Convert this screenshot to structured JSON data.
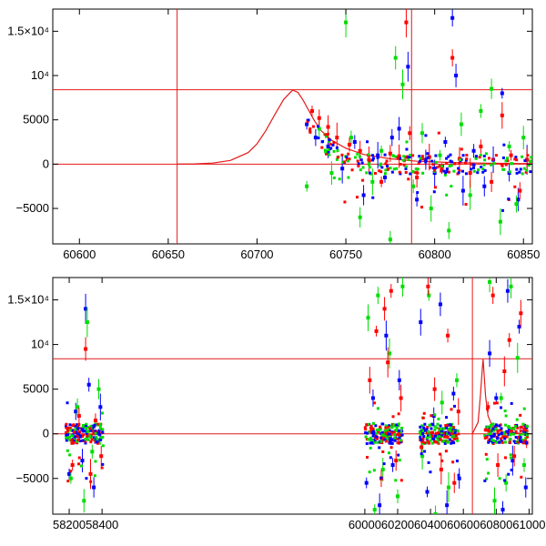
{
  "chart_data": [
    {
      "type": "scatter",
      "title": "",
      "xlabel": "",
      "ylabel": "",
      "xlim": [
        60585,
        60855
      ],
      "ylim": [
        -9000,
        17500
      ],
      "grid": false,
      "legend": "none",
      "x_ticks": [
        {
          "value": 60600,
          "label": "60600"
        },
        {
          "value": 60650,
          "label": "60650"
        },
        {
          "value": 60700,
          "label": "60700"
        },
        {
          "value": 60750,
          "label": "60750"
        },
        {
          "value": 60800,
          "label": "60800"
        },
        {
          "value": 60850,
          "label": "60850"
        }
      ],
      "y_ticks": [
        {
          "value": -5000,
          "label": "−5000"
        },
        {
          "value": 0,
          "label": "0"
        },
        {
          "value": 5000,
          "label": "5000"
        },
        {
          "value": 10000,
          "label": "10⁴"
        },
        {
          "value": 15000,
          "label": "1.5×10⁴"
        }
      ],
      "reference_lines": {
        "horizontal": [
          0,
          8400
        ],
        "vertical": [
          60655,
          60787
        ]
      },
      "model_curve": {
        "color": "#e41a1c",
        "x": [
          60655,
          60665,
          60675,
          60685,
          60695,
          60700,
          60705,
          60710,
          60715,
          60720,
          60723,
          60726,
          60729,
          60732,
          60736,
          60742,
          60750,
          60760,
          60775,
          60790,
          60810,
          60830,
          60855
        ],
        "y": [
          0,
          30,
          120,
          420,
          1300,
          2300,
          3800,
          5600,
          7300,
          8350,
          8100,
          7200,
          6100,
          5000,
          3800,
          2700,
          1800,
          1100,
          600,
          330,
          180,
          100,
          60
        ]
      },
      "series": [
        {
          "color": "#0000ff",
          "x": [
            60728,
            60733,
            60740,
            60748,
            60755,
            60760,
            60768,
            60772,
            60776,
            60780,
            60785,
            60790,
            60795,
            60800,
            60806,
            60810,
            60812,
            60816,
            60822,
            60828,
            60833,
            60838,
            60842,
            60847,
            60852
          ],
          "y": [
            4500,
            3000,
            2000,
            -500,
            2500,
            -3500,
            1000,
            -1500,
            3000,
            4000,
            11000,
            -4000,
            500,
            -1000,
            2500,
            16500,
            10000,
            -3000,
            1500,
            -2500,
            500,
            8000,
            -1000,
            -4000,
            500
          ]
        },
        {
          "color": "#00dd00",
          "x": [
            60728,
            60735,
            60742,
            60750,
            60753,
            60758,
            60765,
            60770,
            60775,
            60778,
            60782,
            60788,
            60793,
            60798,
            60803,
            60808,
            60815,
            60820,
            60826,
            60832,
            60837,
            60842,
            60846,
            60850
          ],
          "y": [
            -2500,
            4000,
            -1000,
            16000,
            3000,
            -6000,
            -2000,
            1500,
            -8500,
            12000,
            9000,
            -2500,
            3500,
            -5000,
            1000,
            -7500,
            4500,
            -3500,
            6000,
            8500,
            -6500,
            2000,
            -4500,
            3000
          ]
        },
        {
          "color": "#ff0000",
          "x": [
            60731,
            60735,
            60740,
            60745,
            60752,
            60758,
            60763,
            60770,
            60775,
            60780,
            60784,
            60786,
            60790,
            60797,
            60804,
            60810,
            60814,
            60820,
            60826,
            60832,
            60838,
            60843,
            60848,
            60852
          ],
          "y": [
            6000,
            5200,
            4200,
            3000,
            2200,
            1500,
            500,
            -2000,
            1200,
            900,
            16000,
            3500,
            -1500,
            800,
            -500,
            12000,
            600,
            -1000,
            2000,
            -2000,
            5500,
            1000,
            -3000,
            500
          ]
        }
      ]
    },
    {
      "type": "scatter",
      "title": "",
      "xlabel": "",
      "ylabel": "",
      "xlim": [
        58100,
        61020
      ],
      "ylim": [
        -9000,
        17500
      ],
      "grid": false,
      "legend": "none",
      "x_ticks": [
        {
          "value": 58200,
          "label": "58200"
        },
        {
          "value": 58400,
          "label": "58400"
        },
        {
          "value": 60000,
          "label": "60000"
        },
        {
          "value": 60200,
          "label": "60200"
        },
        {
          "value": 60400,
          "label": "60400"
        },
        {
          "value": 60600,
          "label": "60600"
        },
        {
          "value": 60800,
          "label": "60800"
        },
        {
          "value": 61000,
          "label": "61000"
        }
      ],
      "y_ticks": [
        {
          "value": -5000,
          "label": "−5000"
        },
        {
          "value": 0,
          "label": "0"
        },
        {
          "value": 5000,
          "label": "5000"
        },
        {
          "value": 10000,
          "label": "10⁴"
        },
        {
          "value": 15000,
          "label": "1.5×10⁴"
        }
      ],
      "reference_lines": {
        "horizontal": [
          0,
          8400
        ],
        "vertical": [
          60655
        ]
      },
      "observing_seasons": [
        [
          58180,
          58410
        ],
        [
          60000,
          60230
        ],
        [
          60330,
          60580
        ],
        [
          60730,
          60990
        ]
      ],
      "model_curve": {
        "color": "#e41a1c",
        "x": [
          60655,
          60690,
          60705,
          60715,
          60720,
          60726,
          60735,
          60750,
          60780,
          60850,
          60990
        ],
        "y": [
          0,
          1300,
          4500,
          7300,
          8350,
          6800,
          4200,
          2000,
          700,
          150,
          20
        ]
      },
      "series": [
        {
          "color": "#0000ff",
          "x": [
            58200,
            58240,
            58280,
            58300,
            58320,
            58350,
            58390,
            60010,
            60050,
            60090,
            60130,
            60170,
            60210,
            60340,
            60380,
            60420,
            60460,
            60500,
            60540,
            60575,
            60760,
            60800,
            60840,
            60870,
            60900,
            60940,
            60980
          ],
          "y": [
            -4500,
            2500,
            -3000,
            14000,
            5500,
            -6000,
            3000,
            -5500,
            4000,
            -8000,
            11000,
            -3500,
            6000,
            12500,
            -6500,
            2000,
            14500,
            -8000,
            4500,
            -5000,
            9000,
            4000,
            -8500,
            16000,
            -3000,
            12000,
            -6000
          ]
        },
        {
          "color": "#00dd00",
          "x": [
            58210,
            58250,
            58290,
            58310,
            58340,
            58380,
            60020,
            60060,
            60080,
            60110,
            60150,
            60200,
            60230,
            60350,
            60390,
            60430,
            60470,
            60510,
            60560,
            60760,
            60790,
            60830,
            60860,
            60890,
            60930,
            60970
          ],
          "y": [
            -5000,
            3000,
            -7500,
            12500,
            -2000,
            5000,
            13000,
            -8500,
            15500,
            -4000,
            9000,
            -7000,
            16500,
            -2500,
            15500,
            -9000,
            3500,
            -6000,
            6000,
            17000,
            -7500,
            4000,
            -5500,
            16500,
            8500,
            -3500
          ]
        },
        {
          "color": "#ff0000",
          "x": [
            58220,
            58260,
            58300,
            58330,
            58360,
            58395,
            60030,
            60070,
            60100,
            60120,
            60140,
            60160,
            60190,
            60220,
            60345,
            60385,
            60425,
            60465,
            60505,
            60545,
            60570,
            60750,
            60780,
            60810,
            60850,
            60880,
            60910,
            60950,
            60985
          ],
          "y": [
            -3500,
            2000,
            9500,
            -4500,
            1500,
            -2500,
            6000,
            11500,
            -5000,
            14000,
            8000,
            16000,
            -3000,
            4000,
            -1500,
            16500,
            5000,
            -4000,
            11000,
            -5500,
            2500,
            3000,
            15500,
            -3500,
            7000,
            10500,
            -2500,
            13500,
            -1000
          ]
        }
      ]
    }
  ]
}
